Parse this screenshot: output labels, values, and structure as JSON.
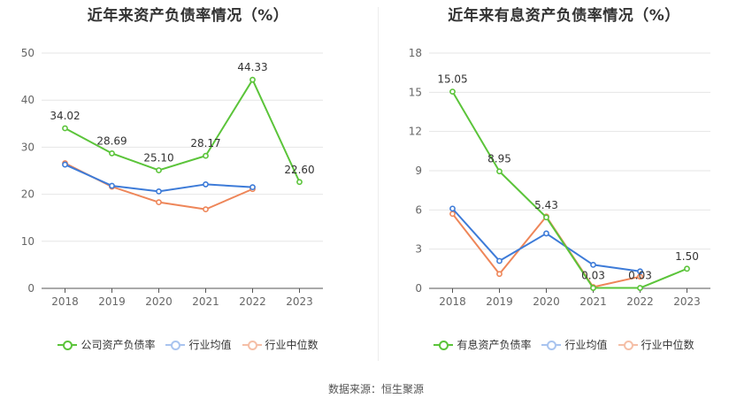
{
  "source": "数据来源：恒生聚源",
  "chart_data": [
    {
      "type": "line",
      "title": "近年来资产负债率情况（%）",
      "categories": [
        "2018",
        "2019",
        "2020",
        "2021",
        "2022",
        "2023"
      ],
      "ylim": [
        0,
        50
      ],
      "yticks": [
        0,
        10,
        20,
        30,
        40,
        50
      ],
      "grid": true,
      "series": [
        {
          "name": "公司资产负债率",
          "color": "#5bc43a",
          "values": [
            34.02,
            28.69,
            25.1,
            28.17,
            44.33,
            22.6
          ],
          "labels": [
            "34.02",
            "28.69",
            "25.10",
            "28.17",
            "44.33",
            "22.60"
          ]
        },
        {
          "name": "行业均值",
          "color": "#3d7bd8",
          "values": [
            26.3,
            21.8,
            20.6,
            22.1,
            21.5,
            null
          ]
        },
        {
          "name": "行业中位数",
          "color": "#ee8659",
          "values": [
            26.6,
            21.6,
            18.3,
            16.8,
            21.1,
            null
          ]
        }
      ]
    },
    {
      "type": "line",
      "title": "近年来有息资产负债率情况（%）",
      "categories": [
        "2018",
        "2019",
        "2020",
        "2021",
        "2022",
        "2023"
      ],
      "ylim": [
        0,
        18
      ],
      "yticks": [
        0,
        3,
        6,
        9,
        12,
        15,
        18
      ],
      "grid": true,
      "series": [
        {
          "name": "有息资产负债率",
          "color": "#5bc43a",
          "values": [
            15.05,
            8.95,
            5.43,
            0.03,
            0.03,
            1.5
          ],
          "labels": [
            "15.05",
            "8.95",
            "5.43",
            "0.03",
            "0.03",
            "1.50"
          ]
        },
        {
          "name": "行业均值",
          "color": "#3d7bd8",
          "values": [
            6.1,
            2.1,
            4.2,
            1.8,
            1.3,
            null
          ]
        },
        {
          "name": "行业中位数",
          "color": "#ee8659",
          "values": [
            5.7,
            1.1,
            5.5,
            0.1,
            0.9,
            null
          ]
        }
      ]
    }
  ]
}
